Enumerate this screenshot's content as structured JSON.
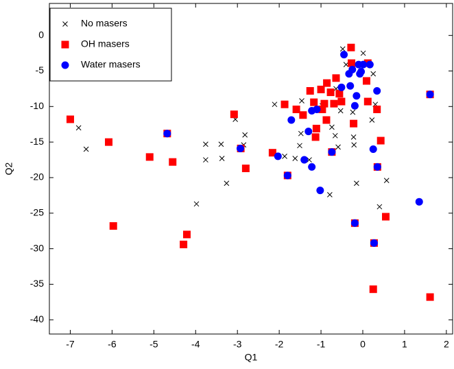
{
  "chart_data": {
    "type": "scatter",
    "x_label": "Q1",
    "y_label": "Q2",
    "xlim": [
      -7.5,
      2.15
    ],
    "ylim": [
      -42,
      4.5
    ],
    "xticks": [
      -7,
      -6,
      -5,
      -4,
      -3,
      -2,
      -1,
      0,
      1,
      2
    ],
    "yticks": [
      0,
      -5,
      -10,
      -15,
      -20,
      -25,
      -30,
      -35,
      -40
    ],
    "legend": "upper left",
    "series": [
      {
        "name": "No masers",
        "color": "#000000",
        "marker": "x",
        "x": [
          -6.8,
          -6.62,
          -3.98,
          -3.76,
          -3.76,
          -3.39,
          -3.37,
          -3.26,
          -3.05,
          -2.82,
          -2.85,
          -2.11,
          -1.87,
          -1.62,
          -1.51,
          -1.48,
          -1.28,
          -0.97,
          -0.74,
          -0.66,
          -0.59,
          -0.79,
          -0.24,
          -0.22,
          -0.21,
          -0.15,
          0.22,
          0.3,
          0.4,
          0.57,
          -0.48,
          0.01,
          -0.4,
          -0.64,
          -0.53,
          -1.22,
          -1.46,
          0.25
        ],
        "y": [
          -13.0,
          -16.0,
          -23.7,
          -15.3,
          -17.5,
          -15.3,
          -17.3,
          -20.8,
          -11.8,
          -14.0,
          -15.4,
          -9.7,
          -17.0,
          -17.3,
          -15.5,
          -13.8,
          -17.5,
          -9.9,
          -12.9,
          -14.1,
          -15.7,
          -22.4,
          -10.8,
          -14.3,
          -15.4,
          -20.8,
          -11.9,
          -9.7,
          -24.1,
          -20.4,
          -1.9,
          -2.5,
          -4.1,
          -7.5,
          -10.6,
          -10.6,
          -9.2,
          -5.4
        ]
      },
      {
        "name": "OH masers",
        "color": "#ff0000",
        "marker": "square",
        "x": [
          -7.0,
          -6.08,
          -5.97,
          -5.1,
          -4.55,
          -4.68,
          -4.21,
          -4.29,
          -3.08,
          -2.92,
          -2.8,
          -2.16,
          -1.87,
          -1.8,
          -1.59,
          -1.43,
          -1.26,
          -1.13,
          -1.11,
          -1.0,
          -0.97,
          -0.92,
          -0.87,
          -0.86,
          -0.77,
          -0.74,
          -0.64,
          -0.56,
          -0.51,
          -0.28,
          -0.27,
          -0.22,
          -0.19,
          0.12,
          0.12,
          0.09,
          0.25,
          0.27,
          0.34,
          0.35,
          0.43,
          0.55,
          1.61,
          1.61,
          -1.17,
          -0.69
        ],
        "y": [
          -11.8,
          -15.0,
          -26.8,
          -17.1,
          -17.8,
          -13.8,
          -28.0,
          -29.4,
          -11.1,
          -15.9,
          -18.7,
          -16.5,
          -9.7,
          -19.7,
          -10.4,
          -11.2,
          -7.8,
          -14.3,
          -13.1,
          -7.6,
          -10.4,
          -9.6,
          -11.9,
          -6.7,
          -8.0,
          -16.4,
          -6.0,
          -8.2,
          -9.3,
          -1.7,
          -3.9,
          -12.4,
          -26.4,
          -9.3,
          -3.9,
          -6.4,
          -35.7,
          -29.2,
          -10.4,
          -18.5,
          -14.8,
          -25.5,
          -8.3,
          -36.8,
          -9.4,
          -9.6
        ]
      },
      {
        "name": "Water masers",
        "color": "#0000ff",
        "marker": "circle",
        "x": [
          -4.68,
          -2.93,
          -2.03,
          -1.8,
          -1.71,
          -1.4,
          -1.3,
          -1.22,
          -1.1,
          -1.02,
          -0.74,
          -0.51,
          -0.45,
          -0.33,
          -0.3,
          -0.25,
          -0.19,
          -0.15,
          -0.1,
          -0.07,
          0.01,
          0.17,
          0.25,
          0.27,
          0.34,
          0.35,
          1.35,
          1.61,
          -1.22,
          -0.19,
          -0.04
        ],
        "y": [
          -13.8,
          -15.9,
          -17.0,
          -19.7,
          -11.9,
          -17.5,
          -13.5,
          -18.5,
          -10.4,
          -21.8,
          -16.4,
          -7.3,
          -2.7,
          -5.4,
          -7.1,
          -4.8,
          -26.4,
          -8.5,
          -4.1,
          -5.4,
          -4.1,
          -4.1,
          -16.0,
          -29.2,
          -7.8,
          -18.5,
          -23.4,
          -8.3,
          -10.6,
          -9.9,
          -5.1
        ]
      }
    ]
  }
}
